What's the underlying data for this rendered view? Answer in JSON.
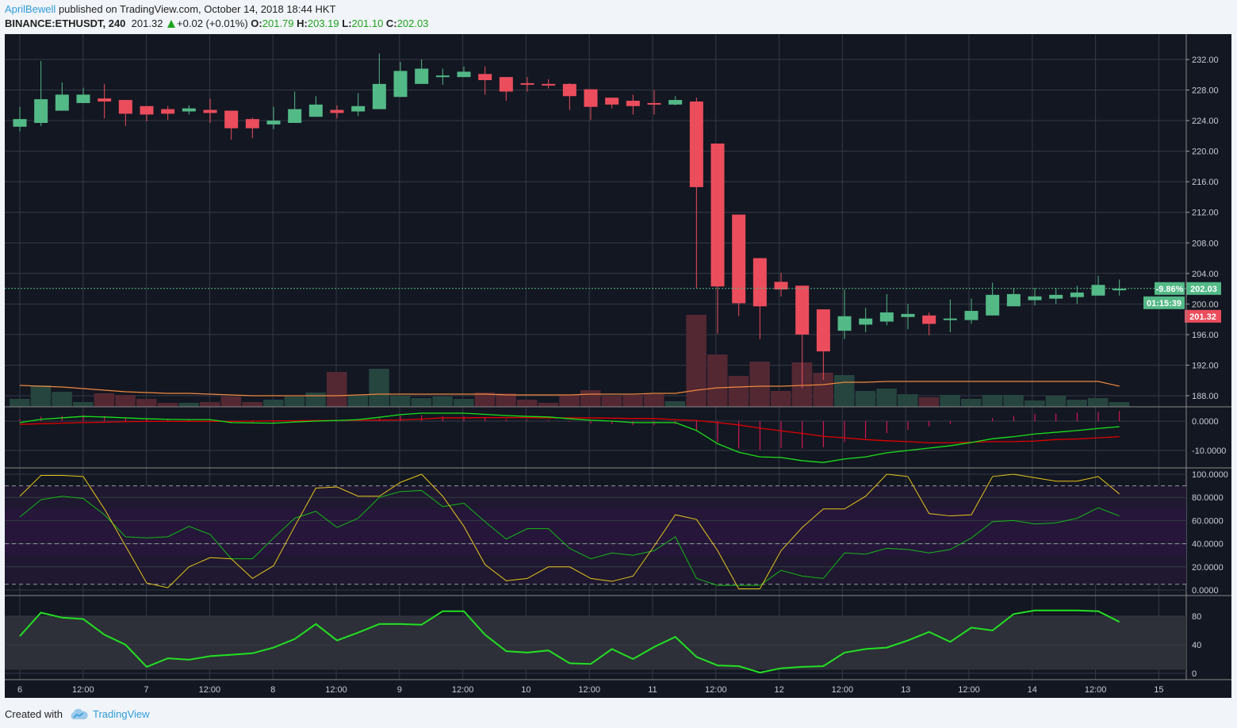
{
  "header": {
    "author": "AprilBewell",
    "published": "published on TradingView.com, October 14, 2018 18:44 HKT",
    "symbol": "BINANCE:ETHUSDT, 240",
    "last": "201.32",
    "change": "+0.02 (+0.01%)",
    "o_label": "O:",
    "o": "201.79",
    "h_label": "H:",
    "h": "203.19",
    "l_label": "L:",
    "l": "201.10",
    "c_label": "C:",
    "c": "202.03"
  },
  "footer": {
    "created_with": "Created with",
    "brand": "TradingView"
  },
  "colors": {
    "up": "#53b987",
    "down": "#eb4d5c",
    "bg": "#131722",
    "grid": "#363a45",
    "link": "#2e9cd9"
  },
  "chart_data": {
    "type": "candlestick",
    "symbol": "BINANCE:ETHUSDT",
    "interval": "240",
    "price_ticks": [
      "188.00",
      "192.00",
      "196.00",
      "200.00",
      "204.00",
      "208.00",
      "212.00",
      "216.00",
      "220.00",
      "224.00",
      "228.00",
      "232.00"
    ],
    "ylim": [
      188,
      232
    ],
    "time_labels": [
      "6",
      "12:00",
      "7",
      "12:00",
      "8",
      "12:00",
      "9",
      "12:00",
      "10",
      "12:00",
      "11",
      "12:00",
      "12",
      "12:00",
      "13",
      "12:00",
      "14",
      "12:00",
      "15"
    ],
    "badges": {
      "pct": "-9.86%",
      "close": "202.03",
      "countdown": "01:15:39",
      "last": "201.32"
    },
    "ohlc": [
      [
        223.2,
        225.8,
        222.6,
        224.2
      ],
      [
        223.7,
        231.8,
        223.3,
        226.8
      ],
      [
        225.3,
        229.0,
        225.3,
        227.4
      ],
      [
        226.3,
        228.3,
        226.3,
        227.4
      ],
      [
        226.9,
        228.8,
        224.3,
        226.5
      ],
      [
        226.7,
        226.7,
        223.3,
        224.9
      ],
      [
        225.9,
        225.9,
        223.9,
        224.8
      ],
      [
        225.5,
        225.9,
        224.1,
        224.9
      ],
      [
        225.2,
        226.0,
        224.8,
        225.6
      ],
      [
        225.4,
        226.9,
        223.7,
        225.0
      ],
      [
        225.3,
        225.3,
        221.5,
        223.0
      ],
      [
        224.2,
        224.4,
        221.7,
        223.0
      ],
      [
        223.5,
        225.8,
        222.9,
        224.0
      ],
      [
        223.7,
        227.8,
        223.7,
        225.5
      ],
      [
        224.5,
        227.2,
        224.5,
        226.1
      ],
      [
        225.4,
        226.0,
        224.3,
        225.0
      ],
      [
        225.2,
        227.6,
        224.6,
        225.9
      ],
      [
        225.5,
        232.8,
        225.5,
        228.8
      ],
      [
        227.1,
        231.7,
        227.1,
        230.5
      ],
      [
        228.8,
        232.0,
        228.8,
        230.8
      ],
      [
        229.7,
        230.8,
        228.7,
        229.9
      ],
      [
        229.7,
        231.1,
        229.7,
        230.4
      ],
      [
        230.1,
        231.1,
        227.4,
        229.3
      ],
      [
        229.7,
        229.7,
        226.6,
        227.8
      ],
      [
        228.9,
        229.7,
        227.8,
        228.7
      ],
      [
        228.8,
        229.4,
        228.2,
        228.7
      ],
      [
        228.8,
        228.9,
        225.4,
        227.2
      ],
      [
        228.1,
        228.1,
        224.1,
        225.8
      ],
      [
        227.0,
        227.0,
        225.6,
        226.1
      ],
      [
        226.6,
        227.4,
        224.8,
        225.9
      ],
      [
        226.3,
        228.0,
        224.8,
        226.1
      ],
      [
        226.1,
        227.2,
        226.0,
        226.7
      ],
      [
        226.5,
        227.0,
        202.1,
        215.3
      ],
      [
        221.0,
        221.0,
        196.1,
        202.3
      ],
      [
        211.7,
        211.7,
        198.4,
        200.1
      ],
      [
        206.0,
        206.0,
        195.4,
        199.7
      ],
      [
        202.9,
        204.1,
        201.0,
        201.9
      ],
      [
        202.4,
        202.4,
        189.0,
        196.0
      ],
      [
        199.3,
        199.3,
        190.1,
        193.8
      ],
      [
        196.5,
        201.9,
        195.4,
        198.4
      ],
      [
        197.3,
        199.5,
        196.3,
        198.1
      ],
      [
        197.7,
        201.3,
        197.2,
        198.9
      ],
      [
        198.3,
        200.0,
        196.7,
        198.7
      ],
      [
        198.5,
        198.9,
        195.9,
        197.4
      ],
      [
        198.0,
        200.6,
        196.3,
        198.1
      ],
      [
        197.9,
        200.7,
        197.4,
        199.1
      ],
      [
        198.5,
        202.8,
        198.5,
        201.2
      ],
      [
        199.7,
        202.1,
        199.7,
        201.3
      ],
      [
        200.5,
        202.1,
        199.8,
        201.0
      ],
      [
        200.7,
        202.1,
        200.0,
        201.2
      ],
      [
        200.9,
        202.4,
        200.0,
        201.5
      ],
      [
        201.1,
        203.7,
        201.1,
        202.5
      ],
      [
        201.8,
        203.2,
        201.1,
        202.0
      ]
    ],
    "volume": [
      10,
      27,
      19,
      6,
      17,
      15,
      10,
      5,
      5,
      6,
      13,
      6,
      9,
      13,
      18,
      44,
      15,
      48,
      14,
      11,
      13,
      10,
      18,
      17,
      9,
      5,
      15,
      21,
      14,
      15,
      16,
      7,
      116,
      66,
      39,
      57,
      20,
      56,
      43,
      40,
      20,
      23,
      16,
      12,
      15,
      10,
      15,
      15,
      8,
      14,
      9,
      11,
      6
    ],
    "volume_ma": [
      27,
      26,
      25,
      23,
      21,
      19,
      18,
      17,
      17,
      16,
      15,
      14,
      14,
      14,
      14,
      14,
      15,
      16,
      16,
      16,
      16,
      16,
      16,
      15,
      15,
      15,
      15,
      16,
      16,
      16,
      17,
      17,
      21,
      24,
      25,
      26,
      26,
      27,
      28,
      31,
      31,
      32,
      32,
      32,
      32,
      32,
      32,
      32,
      32,
      32,
      32,
      32,
      26
    ],
    "macd": {
      "ticks": [
        "0.0000",
        "-10.0000"
      ],
      "macd": [
        -0.5,
        0.6,
        1.1,
        1.6,
        1.4,
        1.1,
        0.8,
        0.6,
        0.5,
        0.5,
        -0.5,
        -0.6,
        -0.7,
        -0.3,
        0,
        0.2,
        0.5,
        1.3,
        2.2,
        2.7,
        2.7,
        2.7,
        2.3,
        1.9,
        1.6,
        1.4,
        0.8,
        0.3,
        0,
        -0.5,
        -0.5,
        -0.5,
        -3.2,
        -7.7,
        -10.6,
        -12.2,
        -12.4,
        -13.5,
        -14.1,
        -12.9,
        -12.2,
        -10.8,
        -10,
        -9.2,
        -8.4,
        -7.3,
        -6,
        -5.3,
        -4.4,
        -3.8,
        -3.2,
        -2.5,
        -1.9
      ],
      "signal": [
        -1.1,
        -0.9,
        -0.7,
        -0.5,
        -0.4,
        -0.2,
        -0.1,
        -0.1,
        -0.1,
        -0.1,
        -0.1,
        0,
        0.1,
        0.1,
        0.2,
        0.2,
        0.3,
        0.3,
        0.4,
        0.7,
        1.1,
        1.1,
        1.2,
        1.2,
        1.2,
        1.1,
        1.1,
        1.1,
        1.0,
        0.9,
        0.9,
        0.5,
        0.2,
        -0.5,
        -1.3,
        -2.4,
        -3.3,
        -4.2,
        -5.2,
        -5.7,
        -6.3,
        -6.7,
        -7,
        -7.4,
        -7.4,
        -7.2,
        -7,
        -7,
        -6.8,
        -6.3,
        -6.1,
        -5.7,
        -5.3
      ]
    },
    "stoch": {
      "ticks": [
        "100.0000",
        "80.0000",
        "60.0000",
        "40.0000",
        "20.0000",
        "0.0000"
      ],
      "k": [
        81,
        99,
        99,
        98,
        70,
        38,
        6,
        2,
        20,
        28,
        27,
        10,
        21,
        55,
        88,
        89,
        81,
        81,
        93,
        100,
        81,
        55,
        22,
        8,
        10,
        20,
        20,
        10,
        7.5,
        12,
        38,
        65,
        61,
        34,
        1,
        1,
        34,
        54,
        70,
        70,
        81,
        100,
        98,
        66,
        64,
        65,
        98,
        100,
        97,
        94,
        94,
        98,
        83
      ],
      "d": [
        63,
        78,
        81,
        79,
        65,
        46,
        45,
        46,
        55,
        48,
        27,
        27,
        45,
        62,
        68,
        54,
        62,
        80,
        85,
        86,
        72,
        75,
        59,
        44,
        53,
        53,
        36,
        27,
        32,
        30,
        34,
        46,
        10,
        4,
        4,
        4,
        17,
        12,
        10,
        32,
        31,
        36,
        35,
        32,
        35,
        45,
        59,
        60,
        57,
        58,
        62,
        71,
        64
      ]
    },
    "rsi": {
      "ticks": [
        "80",
        "40",
        "0"
      ],
      "values": [
        52,
        85,
        78,
        76,
        54,
        40,
        9,
        21,
        19,
        24,
        26,
        28,
        36,
        48,
        69,
        46,
        57,
        69,
        69,
        68,
        87,
        87,
        54,
        31,
        29,
        32,
        14,
        13,
        34,
        20,
        37,
        51,
        23,
        11,
        10,
        1,
        7,
        9,
        10,
        29,
        34,
        36,
        46,
        58,
        44,
        64,
        60,
        83,
        88,
        88,
        88,
        87,
        72
      ]
    }
  }
}
